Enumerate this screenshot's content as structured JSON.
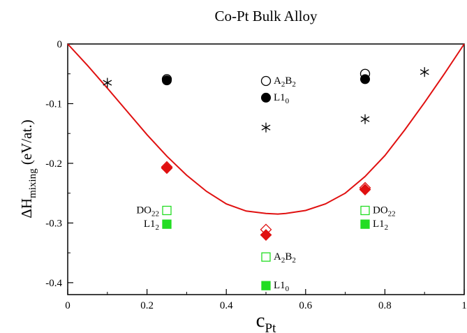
{
  "chart_data": {
    "type": "scatter",
    "title": "Co-Pt Bulk Alloy",
    "xlabel": {
      "main": "c",
      "sub": "Pt"
    },
    "ylabel": {
      "prefix": "ΔH",
      "sub": "mixing",
      "suffix": "(eV/at.)"
    },
    "xlim": [
      0,
      1
    ],
    "ylim": [
      -0.42,
      0
    ],
    "xticks": [
      "0",
      "0.2",
      "0.4",
      "0.6",
      "0.8",
      "1"
    ],
    "xtick_values": [
      0,
      0.2,
      0.4,
      0.6,
      0.8,
      1
    ],
    "yticks": [
      "0",
      "-0.1",
      "-0.2",
      "-0.3",
      "-0.4"
    ],
    "ytick_values": [
      0,
      -0.1,
      -0.2,
      -0.3,
      -0.4
    ],
    "grid": false,
    "colors": {
      "curve": "#e01010",
      "diamond": "#e01010",
      "square": "#22dd22",
      "circle": "#000000",
      "star": "#000000"
    },
    "curve": {
      "name": "",
      "x": [
        0,
        0.05,
        0.1,
        0.15,
        0.2,
        0.25,
        0.3,
        0.35,
        0.4,
        0.45,
        0.5,
        0.53,
        0.55,
        0.6,
        0.65,
        0.7,
        0.75,
        0.8,
        0.85,
        0.9,
        0.95,
        1.0
      ],
      "y": [
        0,
        -0.036,
        -0.074,
        -0.113,
        -0.152,
        -0.188,
        -0.22,
        -0.247,
        -0.268,
        -0.28,
        -0.284,
        -0.285,
        -0.284,
        -0.279,
        -0.268,
        -0.25,
        -0.222,
        -0.187,
        -0.144,
        -0.098,
        -0.05,
        0
      ]
    },
    "series": [
      {
        "name": "",
        "marker": "circle-filled",
        "x": [
          0.25,
          0.5,
          0.75
        ],
        "y": [
          -0.061,
          -0.09,
          -0.059
        ]
      },
      {
        "name": "",
        "marker": "circle-open",
        "x": [
          0.25,
          0.5,
          0.75
        ],
        "y": [
          -0.059,
          -0.062,
          -0.05
        ]
      },
      {
        "name": "",
        "marker": "star",
        "x": [
          0.1,
          0.5,
          0.75,
          0.9
        ],
        "y": [
          -0.065,
          -0.14,
          -0.126,
          -0.047
        ]
      },
      {
        "name": "",
        "marker": "diamond-filled",
        "x": [
          0.25,
          0.5,
          0.75
        ],
        "y": [
          -0.208,
          -0.32,
          -0.244
        ]
      },
      {
        "name": "",
        "marker": "diamond-open",
        "x": [
          0.25,
          0.5,
          0.75
        ],
        "y": [
          -0.206,
          -0.311,
          -0.241
        ]
      },
      {
        "name": "",
        "marker": "square-open",
        "x": [
          0.25,
          0.5,
          0.75
        ],
        "y": [
          -0.279,
          -0.357,
          -0.279
        ]
      },
      {
        "name": "",
        "marker": "square-filled",
        "x": [
          0.25,
          0.5,
          0.75
        ],
        "y": [
          -0.302,
          -0.405,
          -0.302
        ]
      }
    ],
    "annotations": [
      {
        "base": "A",
        "sub1": "2",
        "base2": "B",
        "sub2": "2",
        "x": 0.5,
        "y": -0.062,
        "side": "right"
      },
      {
        "base": "L1",
        "sub1": "0",
        "base2": "",
        "sub2": "",
        "x": 0.5,
        "y": -0.09,
        "side": "right"
      },
      {
        "base": "DO",
        "sub1": "22",
        "base2": "",
        "sub2": "",
        "x": 0.25,
        "y": -0.279,
        "side": "left"
      },
      {
        "base": "L1",
        "sub1": "2",
        "base2": "",
        "sub2": "",
        "x": 0.25,
        "y": -0.302,
        "side": "left"
      },
      {
        "base": "A",
        "sub1": "2",
        "base2": "B",
        "sub2": "2",
        "x": 0.5,
        "y": -0.357,
        "side": "right"
      },
      {
        "base": "L1",
        "sub1": "0",
        "base2": "",
        "sub2": "",
        "x": 0.5,
        "y": -0.405,
        "side": "right"
      },
      {
        "base": "DO",
        "sub1": "22",
        "base2": "",
        "sub2": "",
        "x": 0.75,
        "y": -0.279,
        "side": "right"
      },
      {
        "base": "L1",
        "sub1": "2",
        "base2": "",
        "sub2": "",
        "x": 0.75,
        "y": -0.302,
        "side": "right"
      }
    ]
  }
}
